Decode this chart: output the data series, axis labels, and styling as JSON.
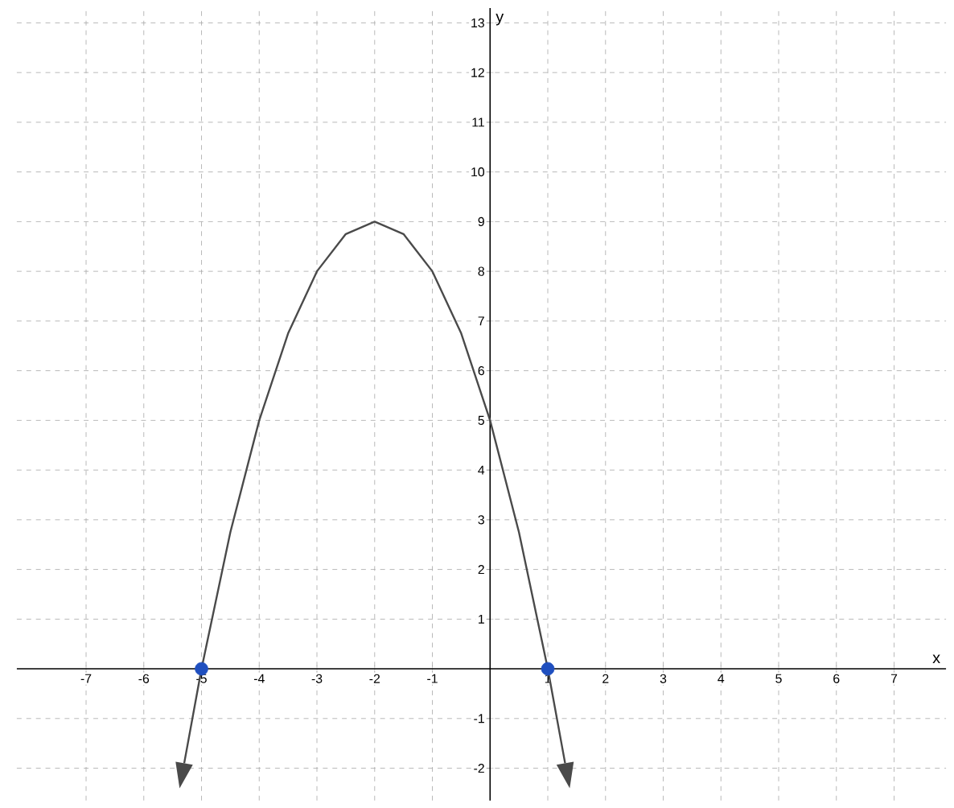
{
  "chart_data": {
    "type": "line",
    "xlabel": "x",
    "ylabel": "y",
    "xlim": [
      -8.2,
      7.9
    ],
    "ylim": [
      -2.65,
      13.3
    ],
    "xticks": [
      -7,
      -6,
      -5,
      -4,
      -3,
      -2,
      -1,
      1,
      2,
      3,
      4,
      5,
      6,
      7
    ],
    "yticks": [
      -2,
      -1,
      1,
      2,
      3,
      4,
      5,
      6,
      7,
      8,
      9,
      10,
      11,
      12,
      13
    ],
    "grid": true,
    "series": [
      {
        "color": "#4a4a4a",
        "line_style": "solid",
        "marker": "none",
        "x": [
          -5.3,
          -5,
          -4.5,
          -4,
          -3.5,
          -3,
          -2.5,
          -2,
          -1.5,
          -1,
          -0.5,
          0,
          0.5,
          1,
          1.3
        ],
        "values": [
          -1.9,
          0,
          2.75,
          5,
          6.75,
          8,
          8.75,
          9,
          8.75,
          8,
          6.75,
          5,
          2.75,
          0,
          -1.9
        ]
      },
      {
        "type": "scatter",
        "color": "#1f4fbf",
        "marker": "circle",
        "x": [
          -5,
          1
        ],
        "values": [
          0,
          0
        ]
      }
    ]
  }
}
